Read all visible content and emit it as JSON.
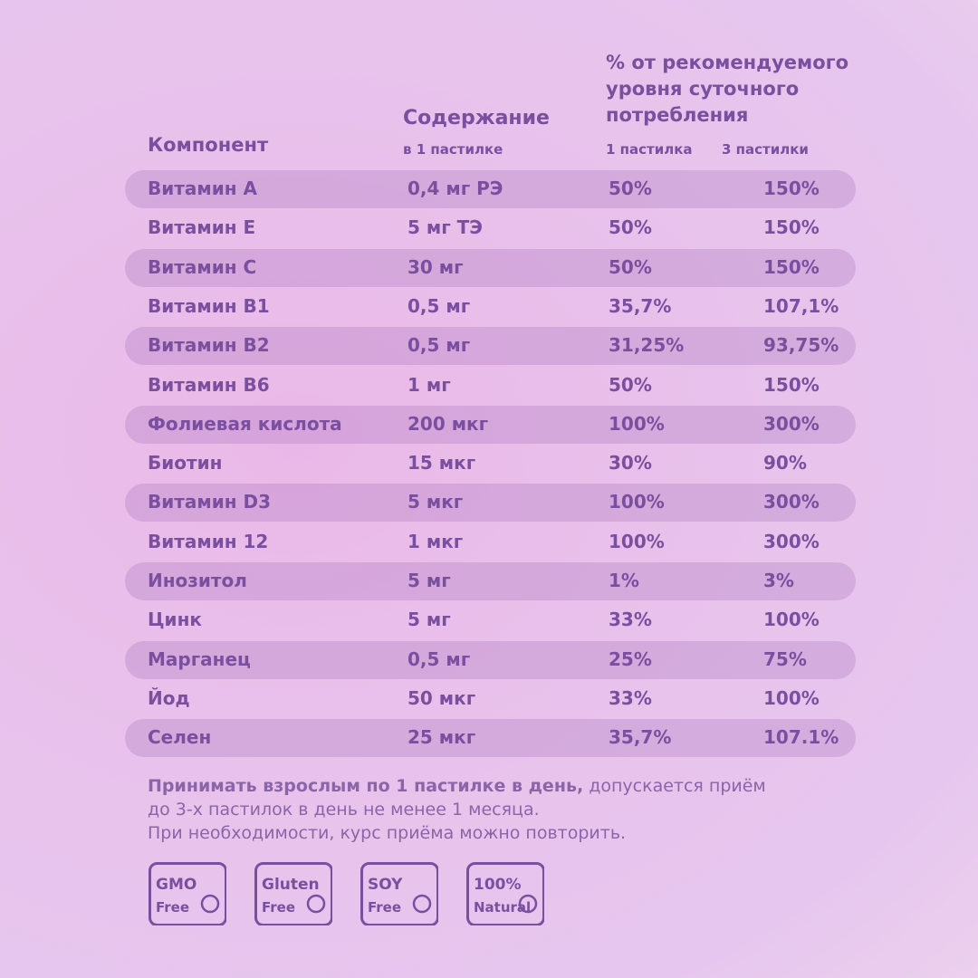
{
  "header": {
    "component": "Компонент",
    "content": "Содержание",
    "content_sub": "в 1 пастилке",
    "percent_lines": [
      "% от рекомендуемого",
      "уровня суточного",
      "потребления"
    ],
    "one": "1 пастилка",
    "three": "3 пастилки"
  },
  "table": {
    "rows": [
      [
        "Витамин А",
        "0,4 мг РЭ",
        "50%",
        "150%"
      ],
      [
        "Витамин Е",
        "5 мг ТЭ",
        "50%",
        "150%"
      ],
      [
        "Витамин С",
        "30 мг",
        "50%",
        "150%"
      ],
      [
        "Витамин В1",
        "0,5 мг",
        "35,7%",
        "107,1%"
      ],
      [
        "Витамин В2",
        "0,5 мг",
        "31,25%",
        "93,75%"
      ],
      [
        "Витамин В6",
        "1 мг",
        "50%",
        "150%"
      ],
      [
        "Фолиевая кислота",
        "200 мкг",
        "100%",
        "300%"
      ],
      [
        "Биотин",
        "15 мкг",
        "30%",
        "90%"
      ],
      [
        "Витамин D3",
        "5 мкг",
        "100%",
        "300%"
      ],
      [
        "Витамин 12",
        "1 мкг",
        "100%",
        "300%"
      ],
      [
        "Инозитол",
        "5 мг",
        "1%",
        "3%"
      ],
      [
        "Цинк",
        "5 мг",
        "33%",
        "100%"
      ],
      [
        "Марганец",
        "0,5 мг",
        "25%",
        "75%"
      ],
      [
        "Йод",
        "50 мкг",
        "33%",
        "100%"
      ],
      [
        "Селен",
        "25 мкг",
        "35,7%",
        "107.1%"
      ]
    ]
  },
  "note": {
    "bold": "Принимать взрослым по 1 пастилке в день,",
    "rest": "допускается приём",
    "lines": [
      "до 3-х пастилок в день не менее 1 месяца.",
      "При необходимости, курс приёма можно повторить."
    ]
  },
  "badges": [
    [
      "GMO",
      "Free"
    ],
    [
      "Gluten",
      "Free"
    ],
    [
      "SOY",
      "Free"
    ],
    [
      "100%",
      "Natural"
    ]
  ]
}
